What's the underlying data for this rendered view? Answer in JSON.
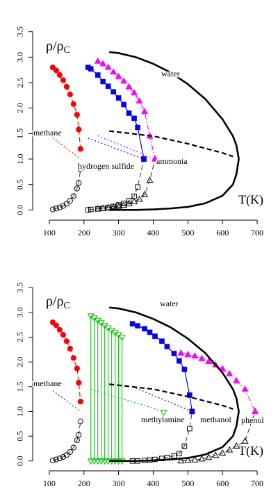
{
  "chart_data": [
    {
      "type": "scatter",
      "xlabel": "T(K)",
      "ylabel": "ρ/ρ",
      "ylabel_subscript": "C",
      "xlim": [
        52,
        730
      ],
      "ylim": [
        -0.2,
        3.7
      ],
      "xticks": [
        100,
        200,
        300,
        400,
        500,
        600,
        700
      ],
      "yticks": [
        {
          "value": 0,
          "label": "0.0"
        },
        {
          "value": 0.5,
          "label": "0.5"
        },
        {
          "value": 1,
          "label": "1.0"
        },
        {
          "value": 1.5,
          "label": "1.5"
        },
        {
          "value": 2,
          "label": "2.0"
        },
        {
          "value": 2.5,
          "label": "2.5"
        },
        {
          "value": 3,
          "label": "3.0"
        },
        {
          "value": 3.5,
          "label": "3.5"
        }
      ],
      "series": [
        {
          "name": "methane",
          "color": "#ff0000",
          "marker": "circle",
          "liquid_line": "dashed",
          "vapor_line": "dashed",
          "T": [
            110,
            120,
            130,
            140,
            150,
            160,
            170,
            180,
            185,
            190
          ],
          "liquid": [
            2.8,
            2.74,
            2.65,
            2.55,
            2.42,
            2.27,
            2.08,
            1.87,
            1.58,
            1.2
          ],
          "vapor": [
            0.01,
            0.03,
            0.05,
            0.08,
            0.12,
            0.18,
            0.27,
            0.42,
            0.53,
            0.8
          ],
          "diameter": {
            "T": [
              110,
              190
            ],
            "rho": [
              1.42,
              1.0
            ],
            "line": "dotted"
          }
        },
        {
          "name": "hydrogen sulfide",
          "color": "#0000ff",
          "marker": "square",
          "liquid_line": "solid",
          "vapor_line": "dashed",
          "T": [
            212,
            220,
            240,
            255,
            270,
            285,
            300,
            315,
            330,
            345,
            355,
            373
          ],
          "liquid": [
            2.8,
            2.77,
            2.65,
            2.52,
            2.43,
            2.32,
            2.2,
            2.07,
            1.9,
            1.8,
            1.62,
            1.0
          ],
          "vapor": [
            0,
            0.01,
            0.02,
            0.03,
            0.05,
            0.07,
            0.1,
            0.13,
            0.18,
            0.27,
            0.45,
            1.0
          ],
          "diameter": {
            "T": [
              212,
              373
            ],
            "rho": [
              1.41,
              1.0
            ],
            "line": "dotted"
          }
        },
        {
          "name": "ammonia",
          "color": "#ff00ff",
          "marker": "triangle",
          "liquid_line": "dashdot",
          "vapor_line": "dashed",
          "T": [
            240,
            255,
            270,
            285,
            300,
            315,
            330,
            345,
            360,
            375,
            390,
            405
          ],
          "liquid": [
            2.92,
            2.87,
            2.8,
            2.71,
            2.62,
            2.53,
            2.42,
            2.3,
            2.14,
            1.93,
            1.45,
            1.0
          ],
          "vapor": [
            0.02,
            0.03,
            0.04,
            0.05,
            0.07,
            0.09,
            0.12,
            0.16,
            0.21,
            0.3,
            0.58,
            1.0
          ],
          "diameter": {
            "T": [
              240,
              405
            ],
            "rho": [
              1.46,
              1.0
            ],
            "line": "dotted"
          }
        },
        {
          "name": "water",
          "color": "#000000",
          "marker": "none",
          "liquid_line": "solid",
          "vapor_line": "solid",
          "T": [
            273,
            300,
            350,
            400,
            450,
            500,
            550,
            600,
            630,
            640,
            647
          ],
          "liquid": [
            3.1,
            3.08,
            3.0,
            2.87,
            2.7,
            2.47,
            2.18,
            1.78,
            1.45,
            1.27,
            1.0
          ],
          "vapor": [
            0,
            0,
            0,
            0.01,
            0.03,
            0.06,
            0.13,
            0.28,
            0.5,
            0.7,
            1.0
          ],
          "diameter": {
            "T": [
              273,
              400,
              500,
              600,
              630
            ],
            "rho": [
              1.55,
              1.45,
              1.3,
              1.12,
              1.05
            ],
            "line": "dashed"
          }
        }
      ]
    },
    {
      "type": "scatter",
      "xlabel": "T(K)",
      "ylabel": "ρ/ρ",
      "ylabel_subscript": "C",
      "xlim": [
        52,
        730
      ],
      "ylim": [
        -0.2,
        3.7
      ],
      "xticks": [
        100,
        200,
        300,
        400,
        500,
        600,
        700
      ],
      "yticks": [
        {
          "value": 0,
          "label": "0.0"
        },
        {
          "value": 0.5,
          "label": "0.5"
        },
        {
          "value": 1,
          "label": "1.0"
        },
        {
          "value": 1.5,
          "label": "1.5"
        },
        {
          "value": 2,
          "label": "2.0"
        },
        {
          "value": 2.5,
          "label": "2.5"
        },
        {
          "value": 3,
          "label": "3.0"
        },
        {
          "value": 3.5,
          "label": "3.5"
        }
      ],
      "series": [
        {
          "name": "methane",
          "color": "#ff0000",
          "marker": "circle",
          "liquid_line": "dashed",
          "vapor_line": "dashed",
          "T": [
            110,
            120,
            130,
            140,
            150,
            160,
            170,
            180,
            185,
            190
          ],
          "liquid": [
            2.8,
            2.74,
            2.65,
            2.55,
            2.42,
            2.27,
            2.08,
            1.87,
            1.58,
            1.2
          ],
          "vapor": [
            0.01,
            0.03,
            0.05,
            0.08,
            0.12,
            0.18,
            0.27,
            0.42,
            0.53,
            0.8
          ],
          "diameter": {
            "T": [
              110,
              190
            ],
            "rho": [
              1.42,
              1.0
            ],
            "line": "dotted"
          }
        },
        {
          "name": "methylamine",
          "color": "#00bb00",
          "marker": "triangle-down",
          "liquid_line": "none",
          "vapor_line": "none",
          "tie_lines": true,
          "T": [
            220,
            230,
            240,
            250,
            260,
            270,
            280,
            290,
            300,
            310
          ],
          "liquid": [
            2.93,
            2.89,
            2.84,
            2.79,
            2.74,
            2.69,
            2.64,
            2.59,
            2.55,
            2.5
          ],
          "vapor": [
            0,
            0,
            0,
            0,
            0,
            0,
            0,
            0,
            0,
            0
          ],
          "diameter": {
            "T": [
              220,
              430
            ],
            "rho": [
              1.45,
              1.0
            ],
            "line": "dotted"
          },
          "critical_point": {
            "T": 430,
            "rho": 0.98
          }
        },
        {
          "name": "methanol",
          "color": "#0000ff",
          "marker": "square",
          "liquid_line": "solid",
          "vapor_line": "dashed",
          "T": [
            340,
            355,
            375,
            390,
            405,
            425,
            440,
            460,
            475,
            490,
            505,
            512
          ],
          "liquid": [
            2.77,
            2.73,
            2.67,
            2.6,
            2.52,
            2.42,
            2.31,
            2.17,
            2.02,
            1.85,
            1.33,
            1.0
          ],
          "vapor": [
            0,
            0,
            0.01,
            0.02,
            0.03,
            0.05,
            0.07,
            0.1,
            0.15,
            0.3,
            0.65,
            1.0
          ],
          "diameter": {
            "T": [
              340,
              512
            ],
            "rho": [
              1.5,
              1.0
            ],
            "line": "dotted"
          }
        },
        {
          "name": "phenol",
          "color": "#ff00ff",
          "marker": "triangle",
          "liquid_line": "dashdot",
          "vapor_line": "dashed",
          "T": [
            480,
            500,
            520,
            540,
            560,
            580,
            600,
            620,
            640,
            665,
            694
          ],
          "liquid": [
            2.18,
            2.15,
            2.12,
            2.07,
            2.01,
            1.94,
            1.86,
            1.76,
            1.62,
            1.45,
            1.0
          ],
          "vapor": [
            0,
            0.01,
            0.02,
            0.04,
            0.07,
            0.11,
            0.16,
            0.22,
            0.3,
            0.4,
            1.0
          ]
        },
        {
          "name": "water",
          "color": "#000000",
          "marker": "none",
          "liquid_line": "solid",
          "vapor_line": "solid",
          "T": [
            273,
            300,
            350,
            400,
            450,
            500,
            550,
            600,
            630,
            640,
            647
          ],
          "liquid": [
            3.1,
            3.08,
            3.0,
            2.87,
            2.7,
            2.47,
            2.18,
            1.78,
            1.45,
            1.27,
            1.0
          ],
          "vapor": [
            0,
            0,
            0,
            0.01,
            0.03,
            0.06,
            0.13,
            0.28,
            0.5,
            0.7,
            1.0
          ],
          "diameter": {
            "T": [
              273,
              400,
              500,
              600,
              630
            ],
            "rho": [
              1.55,
              1.45,
              1.3,
              1.12,
              1.05
            ],
            "line": "dashed"
          }
        }
      ]
    }
  ]
}
